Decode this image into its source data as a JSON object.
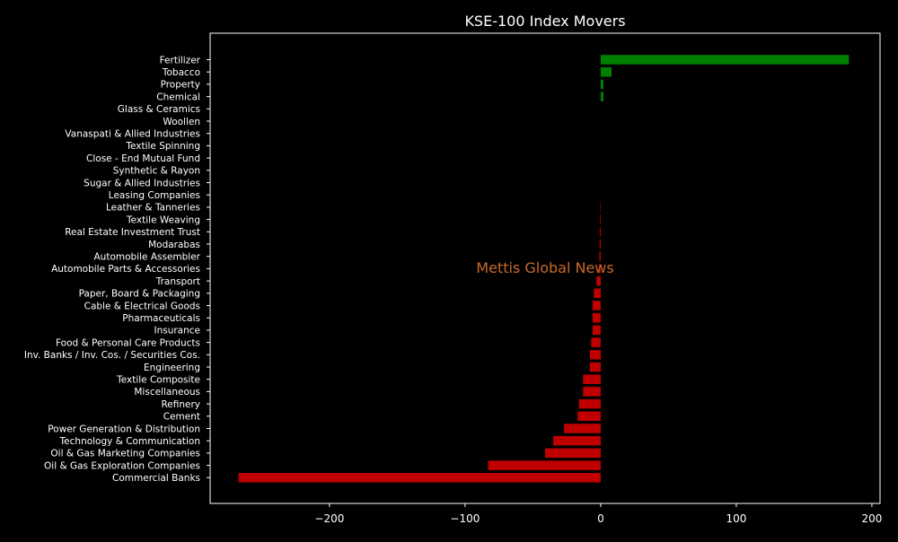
{
  "chart_data": {
    "type": "bar",
    "orientation": "horizontal",
    "title": "KSE-100 Index Movers",
    "xlabel": "",
    "ylabel": "",
    "watermark": "Mettis Global News",
    "xlim": [
      -288,
      206
    ],
    "xticks": [
      -200,
      -100,
      0,
      100,
      200
    ],
    "xtick_labels": [
      "−200",
      "−100",
      "0",
      "100",
      "200"
    ],
    "grid": false,
    "colors": {
      "background": "#000000",
      "text": "#ffffff",
      "positive": "#008000",
      "negative": "#c00000",
      "watermark": "#c8692a",
      "axes": "#ffffff"
    },
    "categories": [
      "Fertilizer",
      "Tobacco",
      "Property",
      "Chemical",
      "Glass & Ceramics",
      "Woollen",
      "Vanaspati & Allied Industries",
      "Textile Spinning",
      "Close - End Mutual Fund",
      "Synthetic & Rayon",
      "Sugar & Allied Industries",
      "Leasing Companies",
      "Leather & Tanneries",
      "Textile Weaving",
      "Real Estate Investment Trust",
      "Modarabas",
      "Automobile Assembler",
      "Automobile Parts & Accessories",
      "Transport",
      "Paper, Board & Packaging",
      "Cable & Electrical Goods",
      "Pharmaceuticals",
      "Insurance",
      "Food & Personal Care Products",
      "Inv. Banks / Inv. Cos. / Securities Cos.",
      "Engineering",
      "Textile Composite",
      "Miscellaneous",
      "Refinery",
      "Cement",
      "Power Generation & Distribution",
      "Technology & Communication",
      "Oil & Gas Marketing Companies",
      "Oil & Gas Exploration Companies",
      "Commercial Banks"
    ],
    "values": [
      183,
      8,
      2,
      2,
      0,
      0,
      0,
      0,
      0,
      0,
      0,
      0,
      -0.3,
      -0.5,
      -0.7,
      -0.8,
      -1,
      -1.2,
      -3,
      -5,
      -6,
      -6,
      -6,
      -7,
      -8,
      -8,
      -13,
      -13,
      -16,
      -17,
      -27,
      -35,
      -41,
      -83,
      -267
    ]
  }
}
